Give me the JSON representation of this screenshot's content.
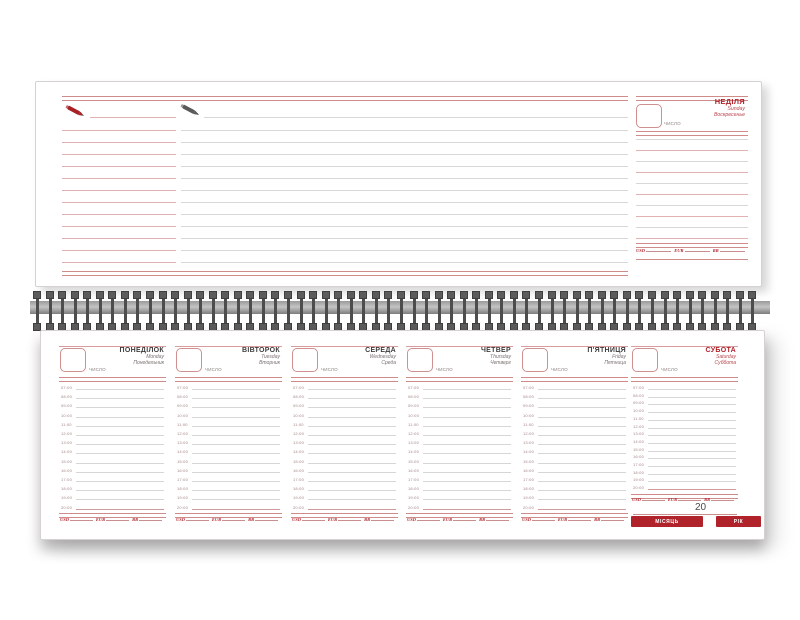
{
  "planner": {
    "sunday_panel": {
      "title_ua": "НЕДІЛЯ",
      "title_en": "Sunday",
      "title_ru": "Воскресенье",
      "date_label": "ЧИСЛО"
    },
    "date_label": "ЧИСЛО",
    "time_slots": [
      "07:00",
      "08:00",
      "09:00",
      "10:00",
      "11:00",
      "12:00",
      "13:00",
      "14:00",
      "15:00",
      "16:00",
      "17:00",
      "18:00",
      "19:00",
      "20:00"
    ],
    "currency_labels": [
      "USD",
      "EUR",
      "RR"
    ],
    "days": [
      {
        "id": "monday",
        "ua": "ПОНЕДІЛОК",
        "en": "Monday",
        "ru": "Понедельник",
        "weekend": false
      },
      {
        "id": "tuesday",
        "ua": "ВІВТОРОК",
        "en": "Tuesday",
        "ru": "Вторник",
        "weekend": false
      },
      {
        "id": "wednesday",
        "ua": "СЕРЕДА",
        "en": "Wednesday",
        "ru": "Среда",
        "weekend": false
      },
      {
        "id": "thursday",
        "ua": "ЧЕТВЕР",
        "en": "Thursday",
        "ru": "Четверг",
        "weekend": false
      },
      {
        "id": "friday",
        "ua": "П'ЯТНИЦЯ",
        "en": "Friday",
        "ru": "Пятница",
        "weekend": false
      },
      {
        "id": "saturday",
        "ua": "СУБОТА",
        "en": "Saturday",
        "ru": "Суббота",
        "weekend": true
      }
    ],
    "footer": {
      "year_prefix": "20",
      "month_button": "МІСЯЦЬ",
      "year_button": "РІК"
    },
    "icons": {
      "left_pen": "red-pen-icon",
      "middle_pen": "gray-pen-icon"
    },
    "colors": {
      "accent_red": "#b1232b",
      "light_red_line": "#e2b2b2",
      "gray_line": "#d8d8d8",
      "dark_text": "#3c3c3c",
      "spiral_gray": "#4d4d4d"
    }
  }
}
